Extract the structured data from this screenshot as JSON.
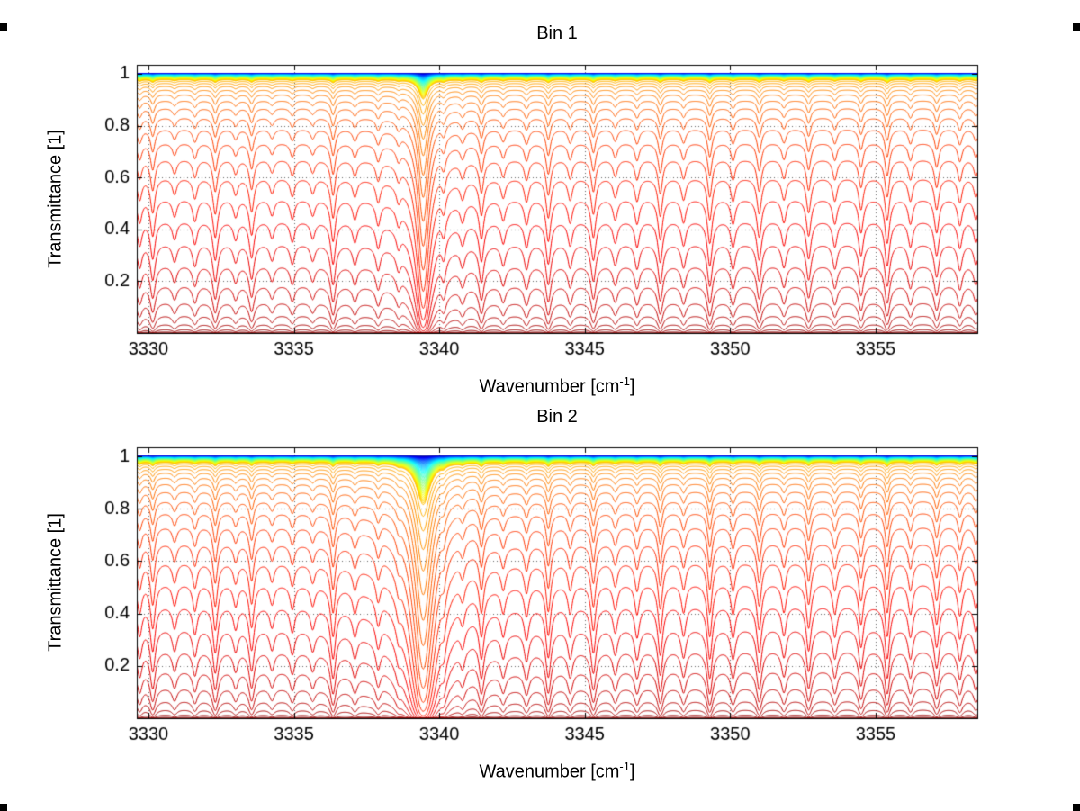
{
  "figure": {
    "background": "#ffffff",
    "subplot1_title": "Bin 1",
    "subplot2_title": "Bin 2",
    "ylabel": "Transmittance [1]",
    "xlabel_prefix": "Wavenumber [cm",
    "xlabel_superscript": "-1",
    "xlabel_suffix": "]"
  },
  "chart_data": [
    {
      "type": "line",
      "title": "Bin 1",
      "xlabel": "Wavenumber [cm^-1]",
      "ylabel": "Transmittance [1]",
      "xlim": [
        3329.6,
        3358.5
      ],
      "ylim": [
        0,
        1.0345
      ],
      "xticks": [
        3330,
        3335,
        3340,
        3345,
        3350,
        3355
      ],
      "yticks": [
        0.2,
        0.4,
        0.6,
        0.8,
        1
      ],
      "grid": "dotted",
      "legend": "none",
      "colormap": "jet",
      "series_description": "transmittance spectra for successive atmospheric levels, baseline transmittance per curve listed in baselines",
      "line_width_cm": 0.09,
      "strength_scale": 1.0,
      "strong_line": {
        "position": 3339.45,
        "strength": 3.6,
        "width": 0.18
      },
      "absorption_lines": [
        [
          3329.7,
          0.3
        ],
        [
          3330.15,
          0.5
        ],
        [
          3330.9,
          0.22
        ],
        [
          3331.6,
          0.28
        ],
        [
          3332.3,
          0.52
        ],
        [
          3333.0,
          0.22
        ],
        [
          3333.55,
          0.48
        ],
        [
          3334.25,
          0.2
        ],
        [
          3334.95,
          0.25
        ],
        [
          3335.65,
          0.2
        ],
        [
          3336.35,
          0.58
        ],
        [
          3337.1,
          0.24
        ],
        [
          3337.9,
          0.3
        ],
        [
          3338.6,
          0.22
        ],
        [
          3340.15,
          0.32
        ],
        [
          3340.8,
          0.24
        ],
        [
          3341.45,
          0.52
        ],
        [
          3342.2,
          0.26
        ],
        [
          3343.0,
          0.32
        ],
        [
          3343.75,
          0.58
        ],
        [
          3344.5,
          0.3
        ],
        [
          3345.3,
          0.52
        ],
        [
          3346.05,
          0.26
        ],
        [
          3346.8,
          0.32
        ],
        [
          3347.6,
          0.56
        ],
        [
          3348.4,
          0.3
        ],
        [
          3349.3,
          0.62
        ],
        [
          3350.1,
          0.32
        ],
        [
          3351.0,
          0.52
        ],
        [
          3351.85,
          0.3
        ],
        [
          3352.7,
          0.5
        ],
        [
          3353.6,
          0.32
        ],
        [
          3354.5,
          0.45
        ],
        [
          3355.4,
          0.62
        ],
        [
          3356.2,
          0.32
        ],
        [
          3357.1,
          0.45
        ],
        [
          3357.9,
          0.34
        ],
        [
          3358.45,
          0.26
        ]
      ],
      "baselines": [
        1.0,
        0.99998,
        0.99995,
        0.9999,
        0.99983,
        0.99975,
        0.99965,
        0.99954,
        0.9994,
        0.99925,
        0.99909,
        0.99891,
        0.99871,
        0.99849,
        0.99826,
        0.99801,
        0.99774,
        0.99746,
        0.99716,
        0.99685,
        0.99652,
        0.99617,
        0.9958,
        0.99542,
        0.99502,
        0.99461,
        0.99418,
        0.99373,
        0.99326,
        0.99278,
        0.99229,
        0.99177,
        0.99124,
        0.99069,
        0.99013,
        0.98955,
        0.98895,
        0.98834,
        0.98771,
        0.98706,
        0.9864,
        0.98572,
        0.98502,
        0.98431,
        0.98358,
        0.98283,
        0.98207,
        0.98129,
        0.98049,
        0.97968,
        0.97885,
        0.978,
        0.972,
        0.964,
        0.953,
        0.939,
        0.921,
        0.898,
        0.869,
        0.833,
        0.789,
        0.736,
        0.673,
        0.601,
        0.521,
        0.436,
        0.349,
        0.265,
        0.188,
        0.122,
        0.071,
        0.036,
        0.015,
        0.005,
        0.0012
      ]
    },
    {
      "type": "line",
      "title": "Bin 2",
      "xlabel": "Wavenumber [cm^-1]",
      "ylabel": "Transmittance [1]",
      "xlim": [
        3329.6,
        3358.5
      ],
      "ylim": [
        0,
        1.0345
      ],
      "xticks": [
        3330,
        3335,
        3340,
        3345,
        3350,
        3355
      ],
      "yticks": [
        0.2,
        0.4,
        0.6,
        0.8,
        1
      ],
      "grid": "dotted",
      "legend": "none",
      "colormap": "jet",
      "series_description": "transmittance spectra for successive atmospheric levels, baseline transmittance per curve listed in baselines",
      "line_width_cm": 0.09,
      "strength_scale": 1.25,
      "strong_line": {
        "position": 3339.45,
        "strength": 6.5,
        "width": 0.26
      },
      "absorption_lines": [
        [
          3329.7,
          0.3
        ],
        [
          3330.15,
          0.5
        ],
        [
          3330.9,
          0.22
        ],
        [
          3331.6,
          0.28
        ],
        [
          3332.3,
          0.52
        ],
        [
          3333.0,
          0.22
        ],
        [
          3333.55,
          0.48
        ],
        [
          3334.25,
          0.2
        ],
        [
          3334.95,
          0.25
        ],
        [
          3335.65,
          0.2
        ],
        [
          3336.35,
          0.58
        ],
        [
          3337.1,
          0.24
        ],
        [
          3337.9,
          0.3
        ],
        [
          3338.6,
          0.22
        ],
        [
          3340.15,
          0.32
        ],
        [
          3340.8,
          0.24
        ],
        [
          3341.45,
          0.52
        ],
        [
          3342.2,
          0.26
        ],
        [
          3343.0,
          0.32
        ],
        [
          3343.75,
          0.58
        ],
        [
          3344.5,
          0.3
        ],
        [
          3345.3,
          0.52
        ],
        [
          3346.05,
          0.26
        ],
        [
          3346.8,
          0.32
        ],
        [
          3347.6,
          0.56
        ],
        [
          3348.4,
          0.3
        ],
        [
          3349.3,
          0.62
        ],
        [
          3350.1,
          0.32
        ],
        [
          3351.0,
          0.52
        ],
        [
          3351.85,
          0.3
        ],
        [
          3352.7,
          0.5
        ],
        [
          3353.6,
          0.32
        ],
        [
          3354.5,
          0.45
        ],
        [
          3355.4,
          0.62
        ],
        [
          3356.2,
          0.32
        ],
        [
          3357.1,
          0.45
        ],
        [
          3357.9,
          0.34
        ],
        [
          3358.45,
          0.26
        ]
      ],
      "baselines": [
        1.0,
        0.99998,
        0.99995,
        0.9999,
        0.99983,
        0.99975,
        0.99965,
        0.99954,
        0.9994,
        0.99925,
        0.99909,
        0.99891,
        0.99871,
        0.99849,
        0.99826,
        0.99801,
        0.99774,
        0.99746,
        0.99716,
        0.99685,
        0.99652,
        0.99617,
        0.9958,
        0.99542,
        0.99502,
        0.99461,
        0.99418,
        0.99373,
        0.99326,
        0.99278,
        0.99229,
        0.99177,
        0.99124,
        0.99069,
        0.99013,
        0.98955,
        0.98895,
        0.98834,
        0.98771,
        0.98706,
        0.9864,
        0.98572,
        0.98502,
        0.98431,
        0.98358,
        0.98283,
        0.98207,
        0.98129,
        0.98049,
        0.97968,
        0.97885,
        0.978,
        0.972,
        0.964,
        0.953,
        0.939,
        0.921,
        0.898,
        0.869,
        0.833,
        0.789,
        0.736,
        0.673,
        0.601,
        0.521,
        0.436,
        0.349,
        0.265,
        0.188,
        0.122,
        0.071,
        0.036,
        0.015,
        0.005,
        0.0012
      ]
    }
  ]
}
